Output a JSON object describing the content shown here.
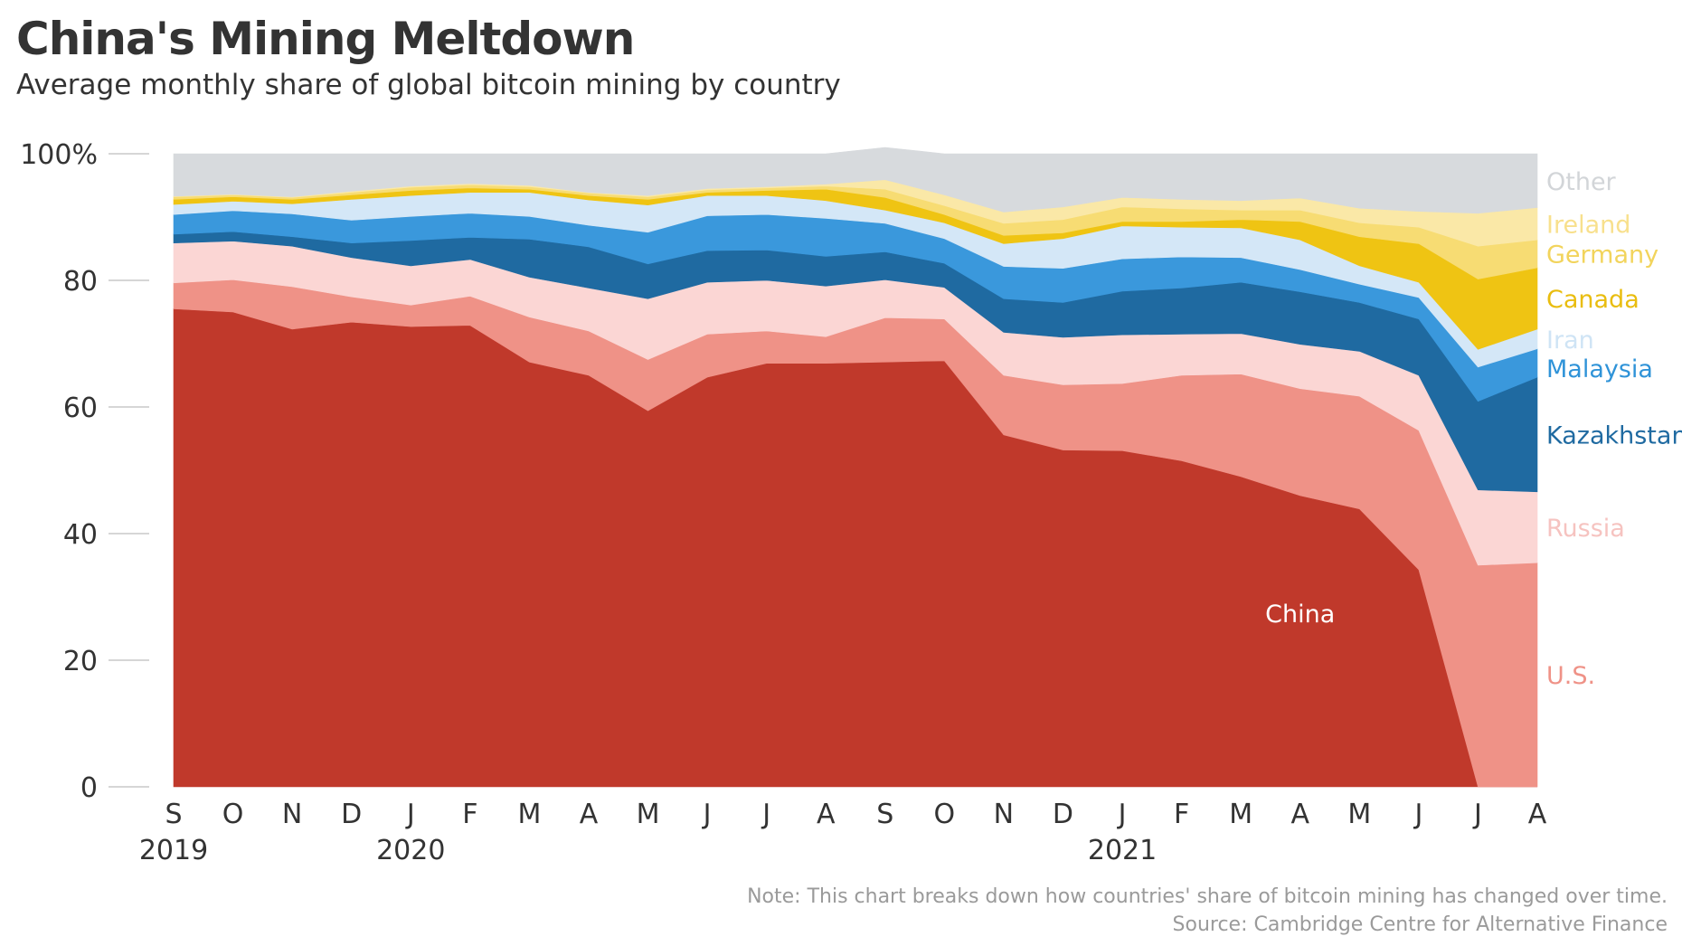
{
  "title": "China's Mining Meltdown",
  "subtitle": "Average monthly share of global bitcoin mining by country",
  "note": "Note: This chart breaks down how countries' share of bitcoin mining has changed over time.",
  "source": "Source: Cambridge Centre for Alternative Finance",
  "chart_data": {
    "type": "area",
    "stacked": true,
    "ylim": [
      0,
      100
    ],
    "yticks": [
      {
        "value": 0,
        "label": "0"
      },
      {
        "value": 20,
        "label": "20"
      },
      {
        "value": 40,
        "label": "40"
      },
      {
        "value": 60,
        "label": "60"
      },
      {
        "value": 80,
        "label": "80"
      },
      {
        "value": 100,
        "label": "100%"
      }
    ],
    "categories": [
      "S",
      "O",
      "N",
      "D",
      "J",
      "F",
      "M",
      "A",
      "M",
      "J",
      "J",
      "A",
      "S",
      "O",
      "N",
      "D",
      "J",
      "F",
      "M",
      "A",
      "M",
      "J",
      "J",
      "A"
    ],
    "year_labels": [
      {
        "index": 0,
        "label": "2019"
      },
      {
        "index": 4,
        "label": "2020"
      },
      {
        "index": 16,
        "label": "2021"
      }
    ],
    "grid": false,
    "legend": "direct labels at right",
    "series": [
      {
        "name": "China",
        "color": "#c0392b",
        "label_color": "#ffffff",
        "values": [
          75.5,
          75,
          72.3,
          73.4,
          72.7,
          72.9,
          67.1,
          65,
          59.4,
          64.7,
          66.9,
          66.9,
          67.1,
          67.3,
          55.6,
          53.2,
          53.1,
          51.5,
          49,
          46,
          43.9,
          34.3,
          0,
          0
        ]
      },
      {
        "name": "U.S.",
        "color": "#ef9287",
        "label_color": "#ef9287",
        "values": [
          4.1,
          5.1,
          6.7,
          4,
          3.4,
          4.6,
          7.1,
          7,
          8.1,
          6.8,
          5.1,
          4.2,
          7,
          6.6,
          9.4,
          10.3,
          10.6,
          13.5,
          16.2,
          16.9,
          17.8,
          22,
          35,
          35.4
        ]
      },
      {
        "name": "Russia",
        "color": "#fbd6d4",
        "label_color": "#f6c3c0",
        "values": [
          6.3,
          6.1,
          6.4,
          6.2,
          6.2,
          5.8,
          6.3,
          6.8,
          9.6,
          8.2,
          8,
          8,
          6,
          5,
          6.8,
          7.5,
          7.7,
          6.5,
          6.4,
          7,
          7.1,
          8.7,
          11.9,
          11.2
        ]
      },
      {
        "name": "Kazakhstan",
        "color": "#1f6aa1",
        "label_color": "#1f6aa1",
        "values": [
          1.4,
          1.5,
          1.5,
          2.3,
          4,
          3.5,
          6,
          6.5,
          5.5,
          5,
          4.8,
          4.7,
          4.4,
          3.8,
          5.3,
          5.5,
          6.9,
          7.3,
          8.1,
          8.3,
          7.7,
          8.9,
          14,
          18.1
        ]
      },
      {
        "name": "Malaysia",
        "color": "#3a98dc",
        "label_color": "#2f93d8",
        "values": [
          3.1,
          3.3,
          3.6,
          3.6,
          3.8,
          3.8,
          3.6,
          3.4,
          5,
          5.5,
          5.6,
          6,
          4.5,
          3.9,
          5.1,
          5.4,
          5.1,
          4.9,
          3.9,
          3.5,
          2.9,
          3.4,
          5.4,
          4.5
        ]
      },
      {
        "name": "Iran",
        "color": "#d4e7f7",
        "label_color": "#cfe4f5",
        "values": [
          1.6,
          1.5,
          1.6,
          3.3,
          3.3,
          3.3,
          3.8,
          4,
          4.3,
          3.2,
          3,
          2.8,
          2.1,
          2.5,
          3.6,
          4.7,
          5.2,
          4.7,
          4.7,
          4.7,
          2.9,
          2.4,
          2.8,
          3.1
        ]
      },
      {
        "name": "Canada",
        "color": "#efc413",
        "label_color": "#e9bd0f",
        "values": [
          0.8,
          0.7,
          0.7,
          0.7,
          0.8,
          0.7,
          0.5,
          0.7,
          0.9,
          0.5,
          0.8,
          1.8,
          2,
          1.3,
          1.3,
          0.9,
          0.7,
          0.9,
          1.3,
          2.9,
          4.6,
          6.1,
          11.1,
          9.7
        ]
      },
      {
        "name": "Germany",
        "color": "#f7dc73",
        "label_color": "#f2d45c",
        "values": [
          0.4,
          0.3,
          0.3,
          0.4,
          0.5,
          0.5,
          0.4,
          0.4,
          0.4,
          0.4,
          0.4,
          0.5,
          1.3,
          1.4,
          1.9,
          2.1,
          2.3,
          2,
          1.5,
          1.8,
          2.2,
          2.6,
          5.2,
          4.4
        ]
      },
      {
        "name": "Ireland",
        "color": "#fae8a7",
        "label_color": "#f8e08d",
        "values": [
          0.1,
          0.1,
          0.1,
          0.2,
          0.2,
          0.2,
          0.2,
          0.1,
          0.2,
          0.2,
          0.2,
          0.3,
          1.5,
          1.7,
          1.8,
          2,
          1.5,
          1.5,
          1.5,
          1.9,
          2.3,
          2.5,
          5.2,
          5.1
        ]
      },
      {
        "name": "Other",
        "color": "#d7dadd",
        "label_color": "#d2d5d8",
        "values": [
          6.7,
          6.4,
          6.8,
          5.9,
          5.1,
          4.7,
          5.0,
          6.1,
          6.6,
          5.5,
          5.2,
          4.8,
          5.1,
          6.5,
          9.2,
          8.4,
          6.9,
          7.2,
          7.4,
          7,
          8.6,
          9.1,
          9.4,
          8.5
        ]
      }
    ],
    "annotations": [
      {
        "text": "China",
        "x_index": 19,
        "value": 26,
        "color": "#ffffff"
      }
    ]
  }
}
